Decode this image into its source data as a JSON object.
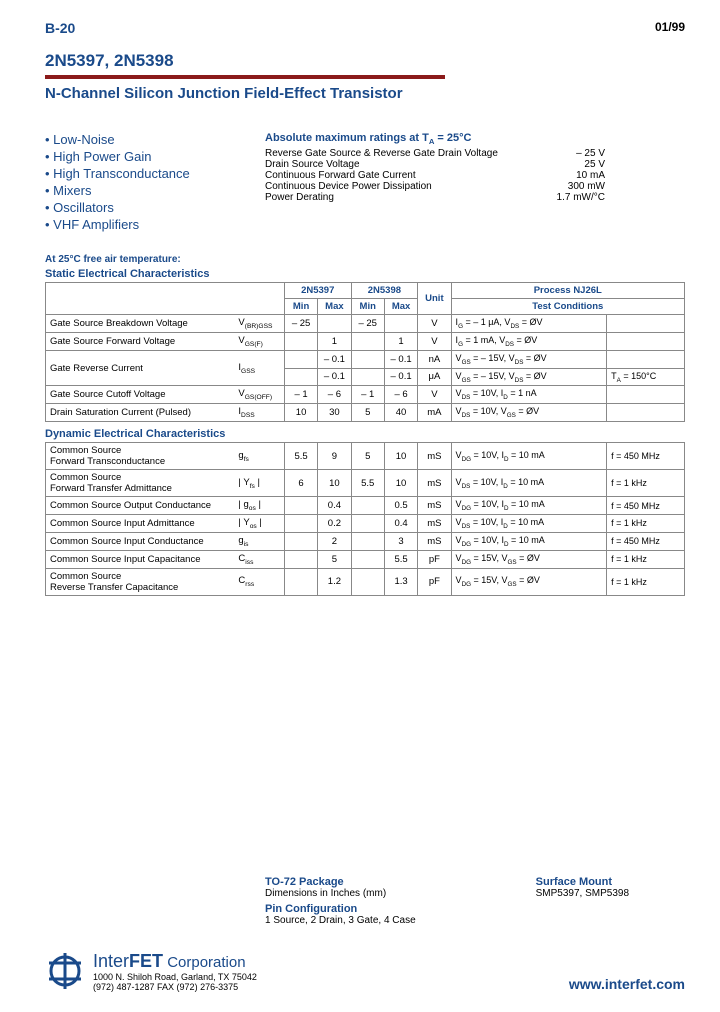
{
  "header": {
    "page_id": "B-20",
    "date": "01/99"
  },
  "title": {
    "parts": "2N5397, 2N5398",
    "subtitle": "N-Channel Silicon Junction Field-Effect Transistor"
  },
  "colors": {
    "blue": "#1a4a8a",
    "red_bar": "#8b1a1a"
  },
  "features": [
    "Low-Noise",
    "High Power Gain",
    "High Transconductance",
    "Mixers",
    "Oscillators",
    "VHF Amplifiers"
  ],
  "ratings": {
    "title": "Absolute maximum ratings at T_A = 25°C",
    "rows": [
      {
        "label": "Reverse Gate Source & Reverse Gate Drain Voltage",
        "val": "– 25 V"
      },
      {
        "label": "Drain Source Voltage",
        "val": "25 V"
      },
      {
        "label": "Continuous Forward Gate Current",
        "val": "10 mA"
      },
      {
        "label": "Continuous Device Power Dissipation",
        "val": "300 mW"
      },
      {
        "label": "Power Derating",
        "val": "1.7 mW/°C"
      }
    ]
  },
  "temp_note": "At 25°C free air temperature:",
  "static_title": "Static Electrical Characteristics",
  "dynamic_title": "Dynamic Electrical Characteristics",
  "table_headers": {
    "p1": "2N5397",
    "p2": "2N5398",
    "process": "Process NJ26L",
    "min": "Min",
    "max": "Max",
    "unit": "Unit",
    "tc": "Test Conditions"
  },
  "static_rows": [
    {
      "param": "Gate Source Breakdown Voltage",
      "sym": "V(BR)GSS",
      "min1": "– 25",
      "max1": "",
      "min2": "– 25",
      "max2": "",
      "unit": "V",
      "tc1": "IG = – 1 μA, VDS = ØV",
      "tc2": ""
    },
    {
      "param": "Gate Source Forward Voltage",
      "sym": "VGS(F)",
      "min1": "",
      "max1": "1",
      "min2": "",
      "max2": "1",
      "unit": "V",
      "tc1": "IG = 1 mA, VDS = ØV",
      "tc2": ""
    },
    {
      "param": "Gate Reverse Current",
      "sym": "IGSS",
      "min1": "",
      "max1": "– 0.1",
      "min2": "",
      "max2": "– 0.1",
      "unit": "nA",
      "tc1": "VGS = – 15V, VDS = ØV",
      "tc2": "",
      "rowspan": true
    },
    {
      "param": "",
      "sym": "",
      "min1": "",
      "max1": "– 0.1",
      "min2": "",
      "max2": "– 0.1",
      "unit": "μA",
      "tc1": "VGS = – 15V, VDS = ØV",
      "tc2": "TA = 150°C"
    },
    {
      "param": "Gate Source Cutoff Voltage",
      "sym": "VGS(OFF)",
      "min1": "– 1",
      "max1": "– 6",
      "min2": "– 1",
      "max2": "– 6",
      "unit": "V",
      "tc1": "VDS = 10V, ID = 1 nA",
      "tc2": ""
    },
    {
      "param": "Drain Saturation Current (Pulsed)",
      "sym": "IDSS",
      "min1": "10",
      "max1": "30",
      "min2": "5",
      "max2": "40",
      "unit": "mA",
      "tc1": "VDS = 10V, VGS = ØV",
      "tc2": ""
    }
  ],
  "dynamic_rows": [
    {
      "param": "Common Source\nForward Transconductance",
      "sym": "gfs",
      "min1": "5.5",
      "max1": "9",
      "min2": "5",
      "max2": "10",
      "unit": "mS",
      "tc1": "VDG = 10V, ID = 10 mA",
      "tc2": "f = 450 MHz"
    },
    {
      "param": "Common Source\nForward Transfer Admittance",
      "sym": "| Yfs |",
      "min1": "6",
      "max1": "10",
      "min2": "5.5",
      "max2": "10",
      "unit": "mS",
      "tc1": "VDS = 10V, ID = 10 mA",
      "tc2": "f = 1 kHz"
    },
    {
      "param": "Common Source Output Conductance",
      "sym": "| gos |",
      "min1": "",
      "max1": "0.4",
      "min2": "",
      "max2": "0.5",
      "unit": "mS",
      "tc1": "VDG = 10V, ID = 10 mA",
      "tc2": "f = 450 MHz"
    },
    {
      "param": "Common Source Input Admittance",
      "sym": "| Yos |",
      "min1": "",
      "max1": "0.2",
      "min2": "",
      "max2": "0.4",
      "unit": "mS",
      "tc1": "VDS = 10V, ID = 10 mA",
      "tc2": "f = 1 kHz"
    },
    {
      "param": "Common Source Input Conductance",
      "sym": "gis",
      "min1": "",
      "max1": "2",
      "min2": "",
      "max2": "3",
      "unit": "mS",
      "tc1": "VDG = 10V, ID = 10 mA",
      "tc2": "f = 450 MHz"
    },
    {
      "param": "Common Source Input Capacitance",
      "sym": "Ciss",
      "min1": "",
      "max1": "5",
      "min2": "",
      "max2": "5.5",
      "unit": "pF",
      "tc1": "VDG = 15V, VGS = ØV",
      "tc2": "f = 1 kHz"
    },
    {
      "param": "Common Source\nReverse Transfer Capacitance",
      "sym": "Crss",
      "min1": "",
      "max1": "1.2",
      "min2": "",
      "max2": "1.3",
      "unit": "pF",
      "tc1": "VDG = 15V, VGS = ØV",
      "tc2": "f = 1 kHz"
    }
  ],
  "package": {
    "pkg_title": "TO-72 Package",
    "pkg_sub": "Dimensions in Inches (mm)",
    "pin_title": "Pin Configuration",
    "pin_sub": "1 Source, 2 Drain, 3 Gate, 4 Case",
    "sm_title": "Surface Mount",
    "sm_sub": "SMP5397, SMP5398"
  },
  "company": {
    "name_inter": "Inter",
    "name_fet": "FET",
    "name_corp": " Corporation",
    "addr1": "1000 N. Shiloh Road, Garland, TX 75042",
    "addr2": "(972) 487-1287  FAX (972) 276-3375",
    "website": "www.interfet.com"
  }
}
